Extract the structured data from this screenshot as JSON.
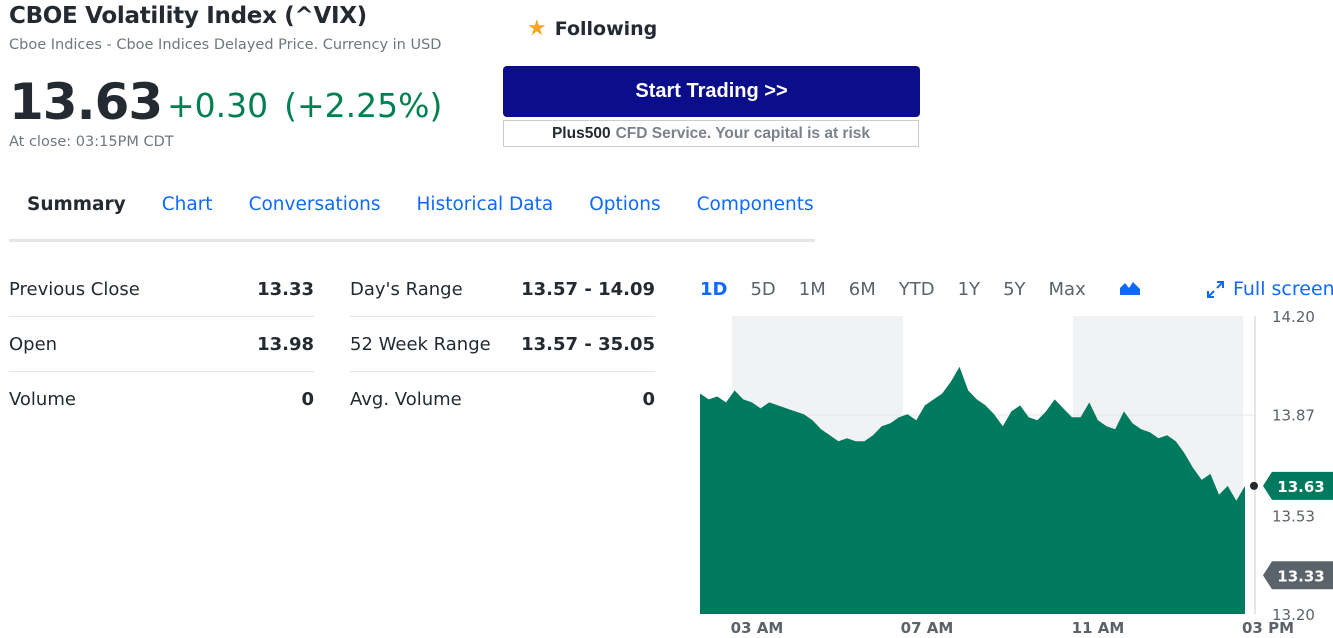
{
  "header": {
    "title": "CBOE Volatility Index (^VIX)",
    "subtitle": "Cboe Indices - Cboe Indices Delayed Price. Currency in USD",
    "price": "13.63",
    "change": "+0.30",
    "change_pct": "(+2.25%)",
    "close_time": "At close: 03:15PM CDT",
    "follow_label": "Following",
    "follow_icon": "star-icon",
    "star_color": "#f5a623"
  },
  "ad": {
    "button_label": "Start Trading >>",
    "brand": "Plus500",
    "note": "CFD Service. Your capital is at risk",
    "button_color": "#0b0e8a"
  },
  "tabs": [
    {
      "label": "Summary",
      "active": true
    },
    {
      "label": "Chart"
    },
    {
      "label": "Conversations"
    },
    {
      "label": "Historical Data"
    },
    {
      "label": "Options"
    },
    {
      "label": "Components"
    }
  ],
  "stats_left": [
    {
      "label": "Previous Close",
      "value": "13.33"
    },
    {
      "label": "Open",
      "value": "13.98"
    },
    {
      "label": "Volume",
      "value": "0"
    }
  ],
  "stats_right": [
    {
      "label": "Day's Range",
      "value": "13.57 - 14.09"
    },
    {
      "label": "52 Week Range",
      "value": "13.57 - 35.05"
    },
    {
      "label": "Avg. Volume",
      "value": "0"
    }
  ],
  "chart": {
    "ranges": [
      "1D",
      "5D",
      "1M",
      "6M",
      "YTD",
      "1Y",
      "5Y",
      "Max"
    ],
    "active_range": "1D",
    "chart_type_icon": "mountain-chart-icon",
    "fullscreen_label": "Full screen",
    "fullscreen_icon": "expand-arrows-icon",
    "accent_color": "#0f69ff",
    "series_color": "#007a5e"
  },
  "chart_data": {
    "type": "area",
    "x_tick_labels": [
      "03 AM",
      "07 AM",
      "11 AM",
      "03 PM"
    ],
    "y_tick_labels": [
      "14.20",
      "13.87",
      "13.53",
      "13.20"
    ],
    "ylim": [
      13.2,
      14.2
    ],
    "current_label": "13.63",
    "previous_close_label": "13.33",
    "previous_close": 13.33,
    "current": 13.63,
    "series": [
      {
        "values": [
          13.94,
          13.92,
          13.93,
          13.91,
          13.95,
          13.92,
          13.91,
          13.89,
          13.91,
          13.9,
          13.89,
          13.88,
          13.87,
          13.85,
          13.82,
          13.8,
          13.78,
          13.79,
          13.78,
          13.78,
          13.8,
          13.83,
          13.84,
          13.86,
          13.87,
          13.85,
          13.9,
          13.92,
          13.94,
          13.98,
          14.03,
          13.95,
          13.92,
          13.9,
          13.87,
          13.83,
          13.88,
          13.9,
          13.86,
          13.85,
          13.88,
          13.92,
          13.89,
          13.86,
          13.86,
          13.91,
          13.85,
          13.83,
          13.82,
          13.88,
          13.84,
          13.82,
          13.81,
          13.79,
          13.8,
          13.78,
          13.74,
          13.69,
          13.65,
          13.67,
          13.6,
          13.63,
          13.58,
          13.63
        ]
      }
    ]
  }
}
